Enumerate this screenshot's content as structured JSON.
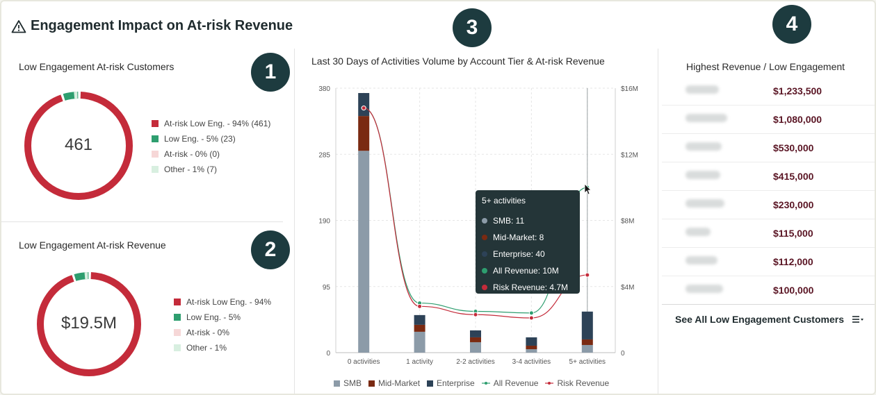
{
  "header": {
    "title": "Engagement Impact on At-risk Revenue",
    "warning_icon": "warning-triangle-icon"
  },
  "badges": [
    "1",
    "2",
    "3",
    "4"
  ],
  "colors": {
    "at_risk_low": "#c42b3a",
    "low": "#2e9e6f",
    "at_risk": "#f6d7d7",
    "other": "#d8efe0",
    "smb": "#8c9ba8",
    "mid": "#7a2a12",
    "enterprise": "#2d4257",
    "all_rev": "#2e9e6f",
    "risk_rev": "#c42b3a"
  },
  "customers_panel": {
    "title": "Low Engagement At-risk Customers",
    "center_value": "461",
    "legend": [
      "At-risk Low Eng. - 94% (461)",
      "Low Eng. - 5% (23)",
      "At-risk - 0% (0)",
      "Other - 1% (7)"
    ],
    "shares": [
      94,
      5,
      0,
      1
    ]
  },
  "revenue_panel": {
    "title": "Low Engagement At-risk Revenue",
    "center_value": "$19.5M",
    "legend": [
      "At-risk Low Eng. - 94%",
      "Low Eng. - 5%",
      "At-risk - 0%",
      "Other - 1%"
    ],
    "shares": [
      94,
      5,
      0,
      1
    ]
  },
  "chart_panel": {
    "title": "Last 30 Days of Activities Volume by Account Tier & At-risk Revenue",
    "legend": [
      "SMB",
      "Mid-Market",
      "Enterprise",
      "All Revenue",
      "Risk Revenue"
    ],
    "tooltip": {
      "title": "5+ activities",
      "rows": [
        "SMB: 11",
        "Mid-Market: 8",
        "Enterprise: 40",
        "All Revenue: 10M",
        "Risk Revenue: 4.7M"
      ]
    }
  },
  "chart_data": {
    "type": "bar",
    "title": "Last 30 Days of Activities Volume by Account Tier & At-risk Revenue",
    "categories": [
      "0 activities",
      "1 activity",
      "2-2 activities",
      "3-4 activities",
      "5+ activities"
    ],
    "left_ticks": [
      "380",
      "285",
      "190",
      "95",
      "0"
    ],
    "right_ticks": [
      "$16M",
      "$12M",
      "$8M",
      "$4M",
      "0"
    ],
    "ylim": [
      0,
      380
    ],
    "y2lim": [
      0,
      16
    ],
    "series": [
      {
        "name": "SMB",
        "type": "bar",
        "values": [
          290,
          30,
          15,
          5,
          11
        ]
      },
      {
        "name": "Mid-Market",
        "type": "bar",
        "values": [
          50,
          10,
          7,
          5,
          8
        ]
      },
      {
        "name": "Enterprise",
        "type": "bar",
        "values": [
          33,
          14,
          10,
          12,
          40
        ]
      },
      {
        "name": "All Revenue",
        "type": "line",
        "values": [
          14.8,
          3.0,
          2.5,
          2.4,
          10.0
        ]
      },
      {
        "name": "Risk Revenue",
        "type": "line",
        "values": [
          14.8,
          2.8,
          2.3,
          2.1,
          4.7
        ]
      }
    ]
  },
  "top_list": {
    "title": "Highest Revenue / Low Engagement",
    "values": [
      "$1,233,500",
      "$1,080,000",
      "$530,000",
      "$415,000",
      "$230,000",
      "$115,000",
      "$112,000",
      "$100,000"
    ],
    "see_all": "See All Low Engagement Customers",
    "see_all_icon": "list-filter-icon"
  }
}
